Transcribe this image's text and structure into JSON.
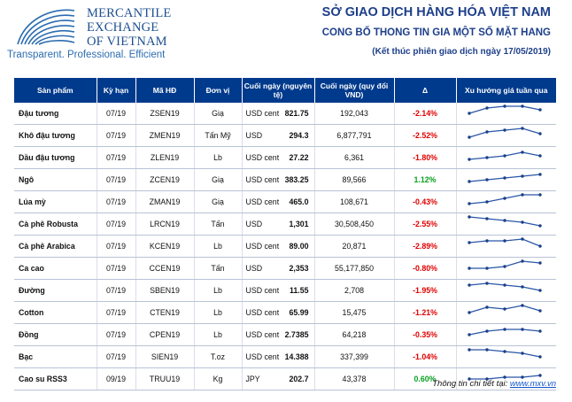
{
  "logo": {
    "line1": "MERCANTILE",
    "line2": "EXCHANGE",
    "line3": "OF VIETNAM",
    "tagline": "Transparent. Professional. Efficient",
    "color": "#1d4f8f"
  },
  "header": {
    "title": "SỞ GIAO DỊCH HÀNG HÓA VIỆT NAM",
    "subtitle": "CONG BỐ THONG TIN GIA MỘT SỐ MẶT HANG",
    "note": "(Kết thúc phiên giao dịch ngày 17/05/2019)"
  },
  "table": {
    "columns": [
      "Sản phẩm",
      "Kỳ hạn",
      "Mã HĐ",
      "Đơn vị",
      "Cuối ngày (nguyên tệ)",
      "Cuối ngày (quy đổi VND)",
      "Δ",
      "Xu hướng giá tuần qua"
    ],
    "rows": [
      {
        "product": "Đậu tương",
        "term": "07/19",
        "code": "ZSEN19",
        "unit": "Giạ",
        "currency": "USD cent",
        "price": "821.75",
        "vnd": "192,043",
        "change": "-2.14%",
        "dir": "neg",
        "trend": [
          3,
          6,
          7,
          7,
          5
        ]
      },
      {
        "product": "Khô đậu tương",
        "term": "07/19",
        "code": "ZMEN19",
        "unit": "Tấn Mỹ",
        "currency": "USD",
        "price": "294.3",
        "vnd": "6,877,791",
        "change": "-2.52%",
        "dir": "neg",
        "trend": [
          2,
          5,
          6,
          7,
          4
        ]
      },
      {
        "product": "Dầu đậu tương",
        "term": "07/19",
        "code": "ZLEN19",
        "unit": "Lb",
        "currency": "USD cent",
        "price": "27.22",
        "vnd": "6,361",
        "change": "-1.80%",
        "dir": "neg",
        "trend": [
          2,
          3,
          4,
          6,
          4
        ]
      },
      {
        "product": "Ngô",
        "term": "07/19",
        "code": "ZCEN19",
        "unit": "Giạ",
        "currency": "USD cent",
        "price": "383.25",
        "vnd": "89,566",
        "change": "1.12%",
        "dir": "pos",
        "trend": [
          2,
          3,
          4,
          5,
          6
        ]
      },
      {
        "product": "Lúa mỳ",
        "term": "07/19",
        "code": "ZMAN19",
        "unit": "Giạ",
        "currency": "USD cent",
        "price": "465.0",
        "vnd": "108,671",
        "change": "-0.43%",
        "dir": "neg",
        "trend": [
          2,
          3,
          5,
          7,
          7
        ]
      },
      {
        "product": "Cà phê Robusta",
        "term": "07/19",
        "code": "LRCN19",
        "unit": "Tấn",
        "currency": "USD",
        "price": "1,301",
        "vnd": "30,508,450",
        "change": "-2.55%",
        "dir": "neg",
        "trend": [
          7,
          6,
          5,
          4,
          2
        ]
      },
      {
        "product": "Cà phê Arabica",
        "term": "07/19",
        "code": "KCEN19",
        "unit": "Lb",
        "currency": "USD cent",
        "price": "89.00",
        "vnd": "20,871",
        "change": "-2.89%",
        "dir": "neg",
        "trend": [
          5,
          6,
          6,
          7,
          3
        ]
      },
      {
        "product": "Ca cao",
        "term": "07/19",
        "code": "CCEN19",
        "unit": "Tấn",
        "currency": "USD",
        "price": "2,353",
        "vnd": "55,177,850",
        "change": "-0.80%",
        "dir": "neg",
        "trend": [
          3,
          3,
          4,
          7,
          6
        ]
      },
      {
        "product": "Đường",
        "term": "07/19",
        "code": "SBEN19",
        "unit": "Lb",
        "currency": "USD cent",
        "price": "11.55",
        "vnd": "2,708",
        "change": "-1.95%",
        "dir": "neg",
        "trend": [
          6,
          7,
          6,
          5,
          3
        ]
      },
      {
        "product": "Cotton",
        "term": "07/19",
        "code": "CTEN19",
        "unit": "Lb",
        "currency": "USD cent",
        "price": "65.99",
        "vnd": "15,475",
        "change": "-1.21%",
        "dir": "neg",
        "trend": [
          3,
          6,
          5,
          7,
          4
        ]
      },
      {
        "product": "Đồng",
        "term": "07/19",
        "code": "CPEN19",
        "unit": "Lb",
        "currency": "USD cent",
        "price": "2.7385",
        "vnd": "64,218",
        "change": "-0.35%",
        "dir": "neg",
        "trend": [
          3,
          5,
          6,
          6,
          5
        ]
      },
      {
        "product": "Bạc",
        "term": "07/19",
        "code": "SIEN19",
        "unit": "T.oz",
        "currency": "USD cent",
        "price": "14.388",
        "vnd": "337,399",
        "change": "-1.04%",
        "dir": "neg",
        "trend": [
          7,
          7,
          6,
          5,
          3
        ]
      },
      {
        "product": "Cao su RSS3",
        "term": "09/19",
        "code": "TRUU19",
        "unit": "Kg",
        "currency": "JPY",
        "price": "202.7",
        "vnd": "43,378",
        "change": "0.60%",
        "dir": "pos",
        "trend": [
          3,
          3,
          4,
          4,
          5
        ]
      }
    ]
  },
  "footer": {
    "text": "Thông tin chi tiết tại: ",
    "link": "www.mxv.vn"
  },
  "colors": {
    "header_bg": "#003a8c",
    "negative": "#e00000",
    "positive": "#07a020",
    "title": "#1d3f8a"
  }
}
